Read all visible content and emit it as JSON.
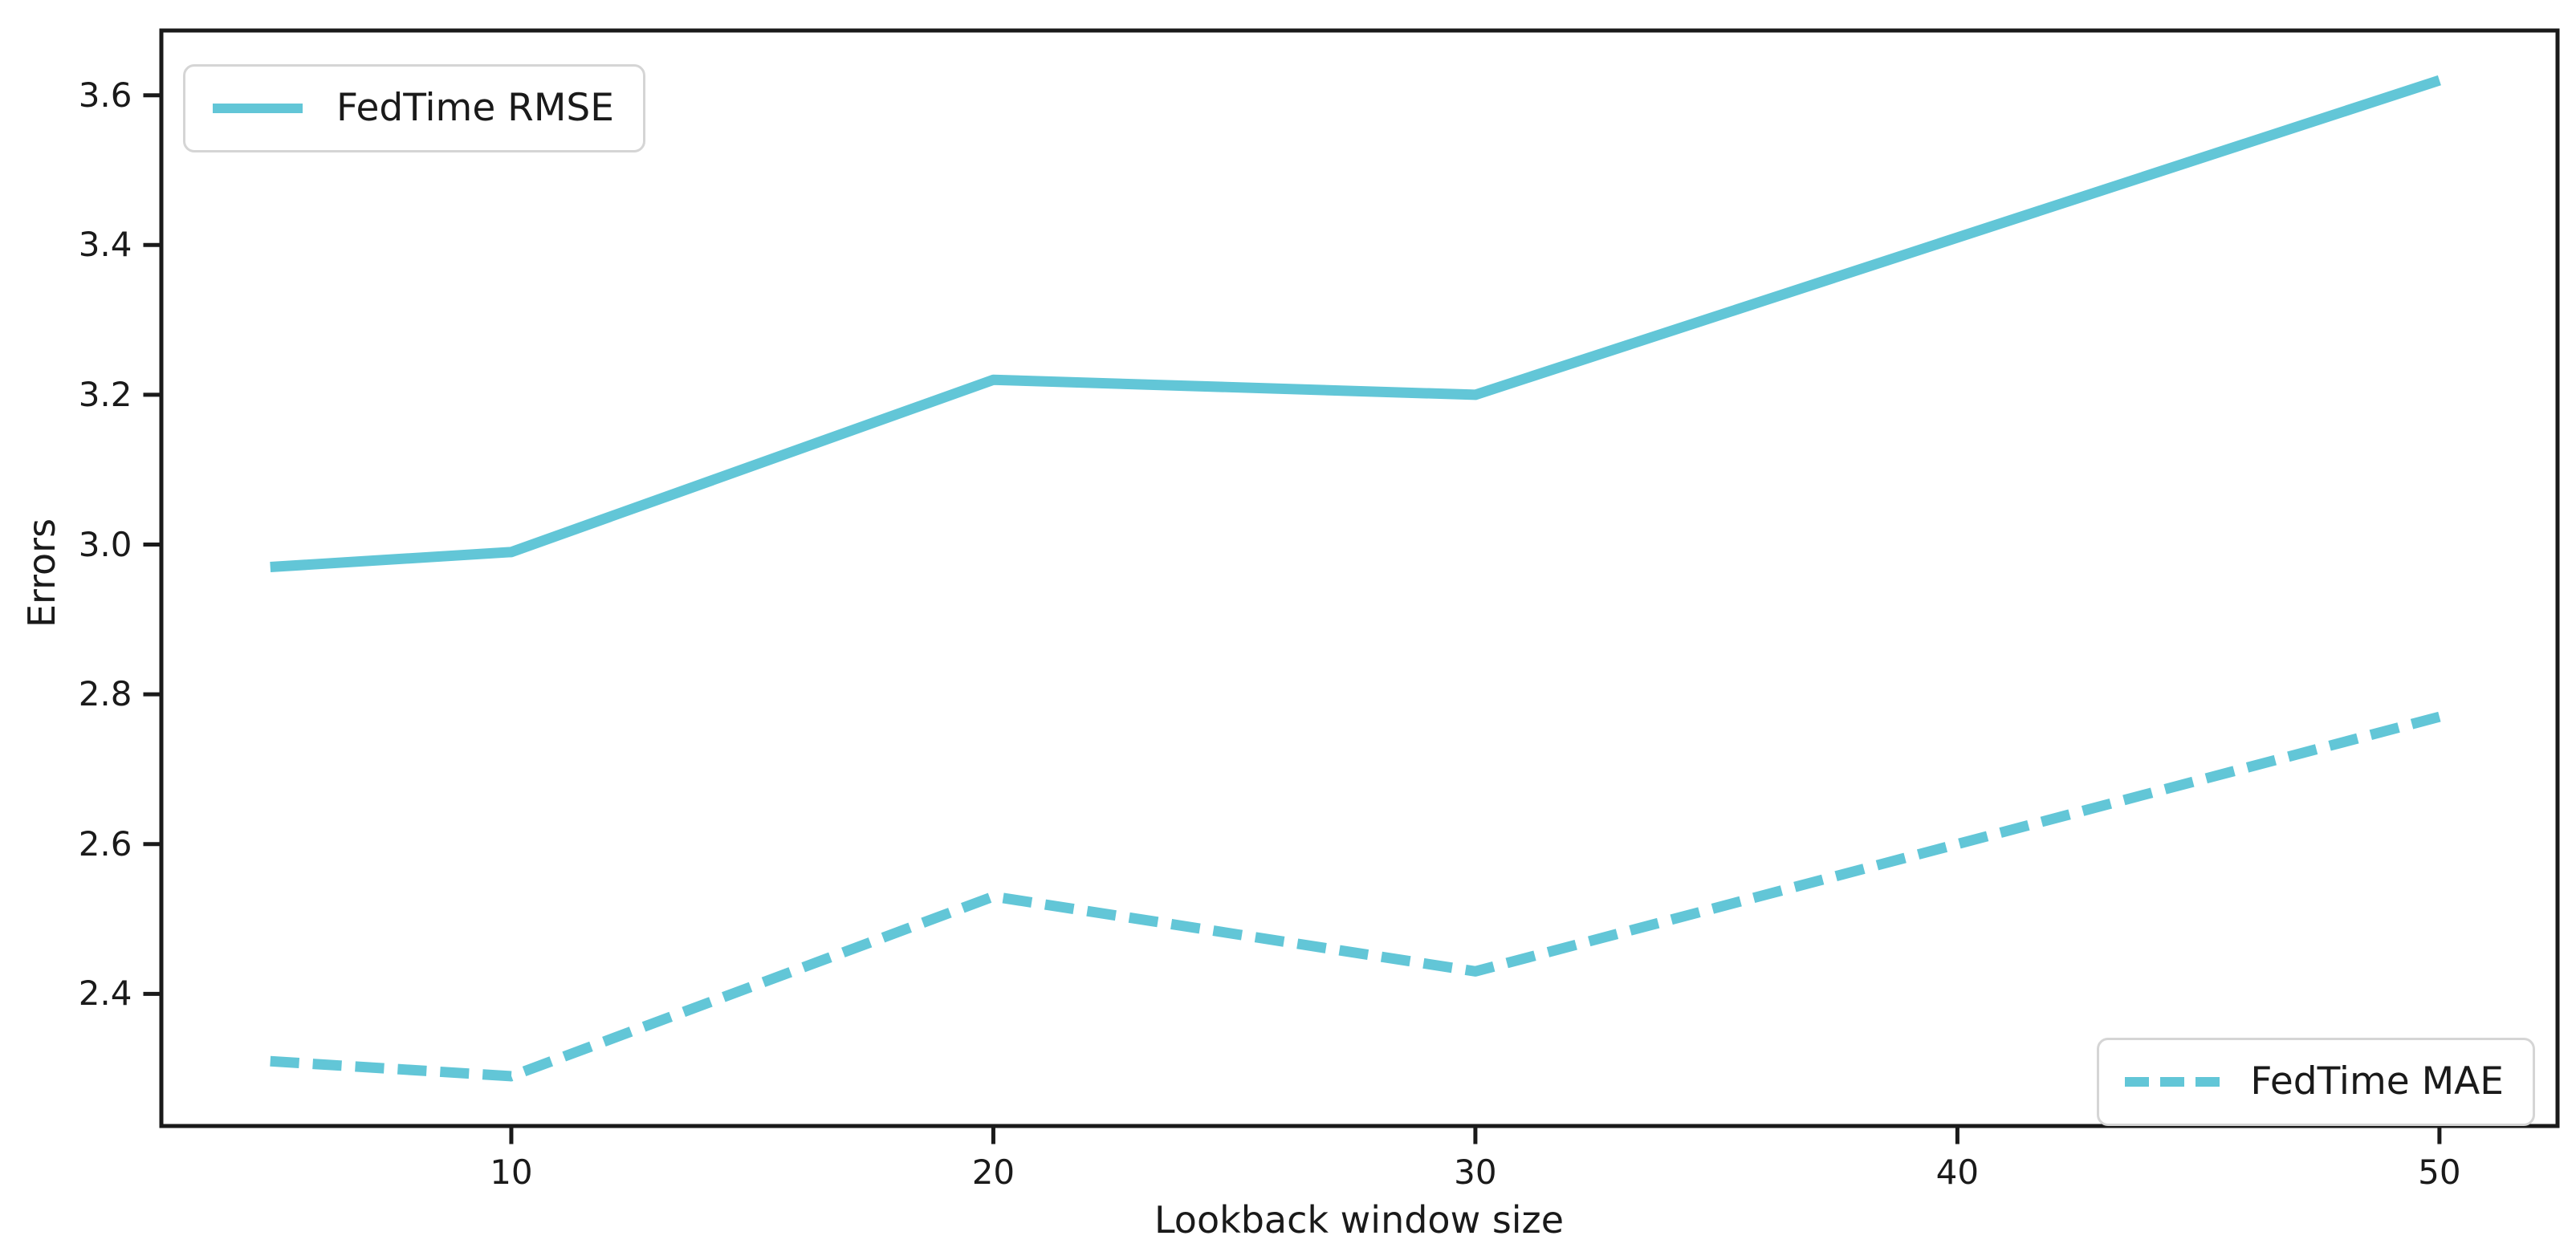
{
  "chart_data": {
    "type": "line",
    "title": "",
    "xlabel": "Lookback window size",
    "ylabel": "Errors",
    "x": [
      5,
      10,
      20,
      30,
      50
    ],
    "series": [
      {
        "name": "FedTime RMSE",
        "style": "solid",
        "values": [
          2.97,
          2.99,
          3.22,
          3.2,
          3.62
        ]
      },
      {
        "name": "FedTime MAE",
        "style": "dashed",
        "values": [
          2.31,
          2.29,
          2.53,
          2.43,
          2.77
        ]
      }
    ],
    "xticks": [
      10,
      20,
      30,
      40,
      50
    ],
    "yticks": [
      2.4,
      2.6,
      2.8,
      3.0,
      3.2,
      3.4,
      3.6
    ],
    "xlim": [
      2.74,
      52.45
    ],
    "ylim": [
      2.2235,
      3.6865
    ],
    "grid": false,
    "line_color": "#62c6d7",
    "axis_color": "#1a1a1a",
    "legend": [
      {
        "label": "FedTime RMSE",
        "style": "solid",
        "position": "upper left"
      },
      {
        "label": "FedTime MAE",
        "style": "dashed",
        "position": "lower right"
      }
    ]
  }
}
